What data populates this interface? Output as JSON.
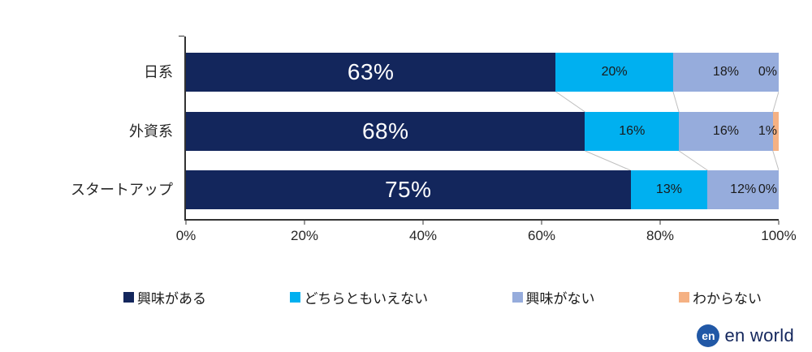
{
  "chart_data": {
    "type": "bar",
    "orientation": "horizontal",
    "stacked": true,
    "value_suffix": "%",
    "categories": [
      "日系",
      "外資系",
      "スタートアップ"
    ],
    "series": [
      {
        "name": "興味がある",
        "color": "#13265C",
        "values": [
          63,
          68,
          75
        ]
      },
      {
        "name": "どちらともいえない",
        "color": "#00B0F0",
        "values": [
          20,
          16,
          13
        ]
      },
      {
        "name": "興味がない",
        "color": "#96ACDC",
        "values": [
          18,
          16,
          12
        ]
      },
      {
        "name": "わからない",
        "color": "#F5B183",
        "values": [
          0,
          1,
          0
        ]
      }
    ],
    "x_ticks": [
      "0%",
      "20%",
      "40%",
      "60%",
      "80%",
      "100%"
    ],
    "xlim": [
      0,
      100
    ],
    "grid": false,
    "legend_position": "bottom",
    "connector_color": "#BFBFBF",
    "axis_color": "#333333"
  },
  "logo": {
    "mark": "en",
    "text": "en world"
  }
}
